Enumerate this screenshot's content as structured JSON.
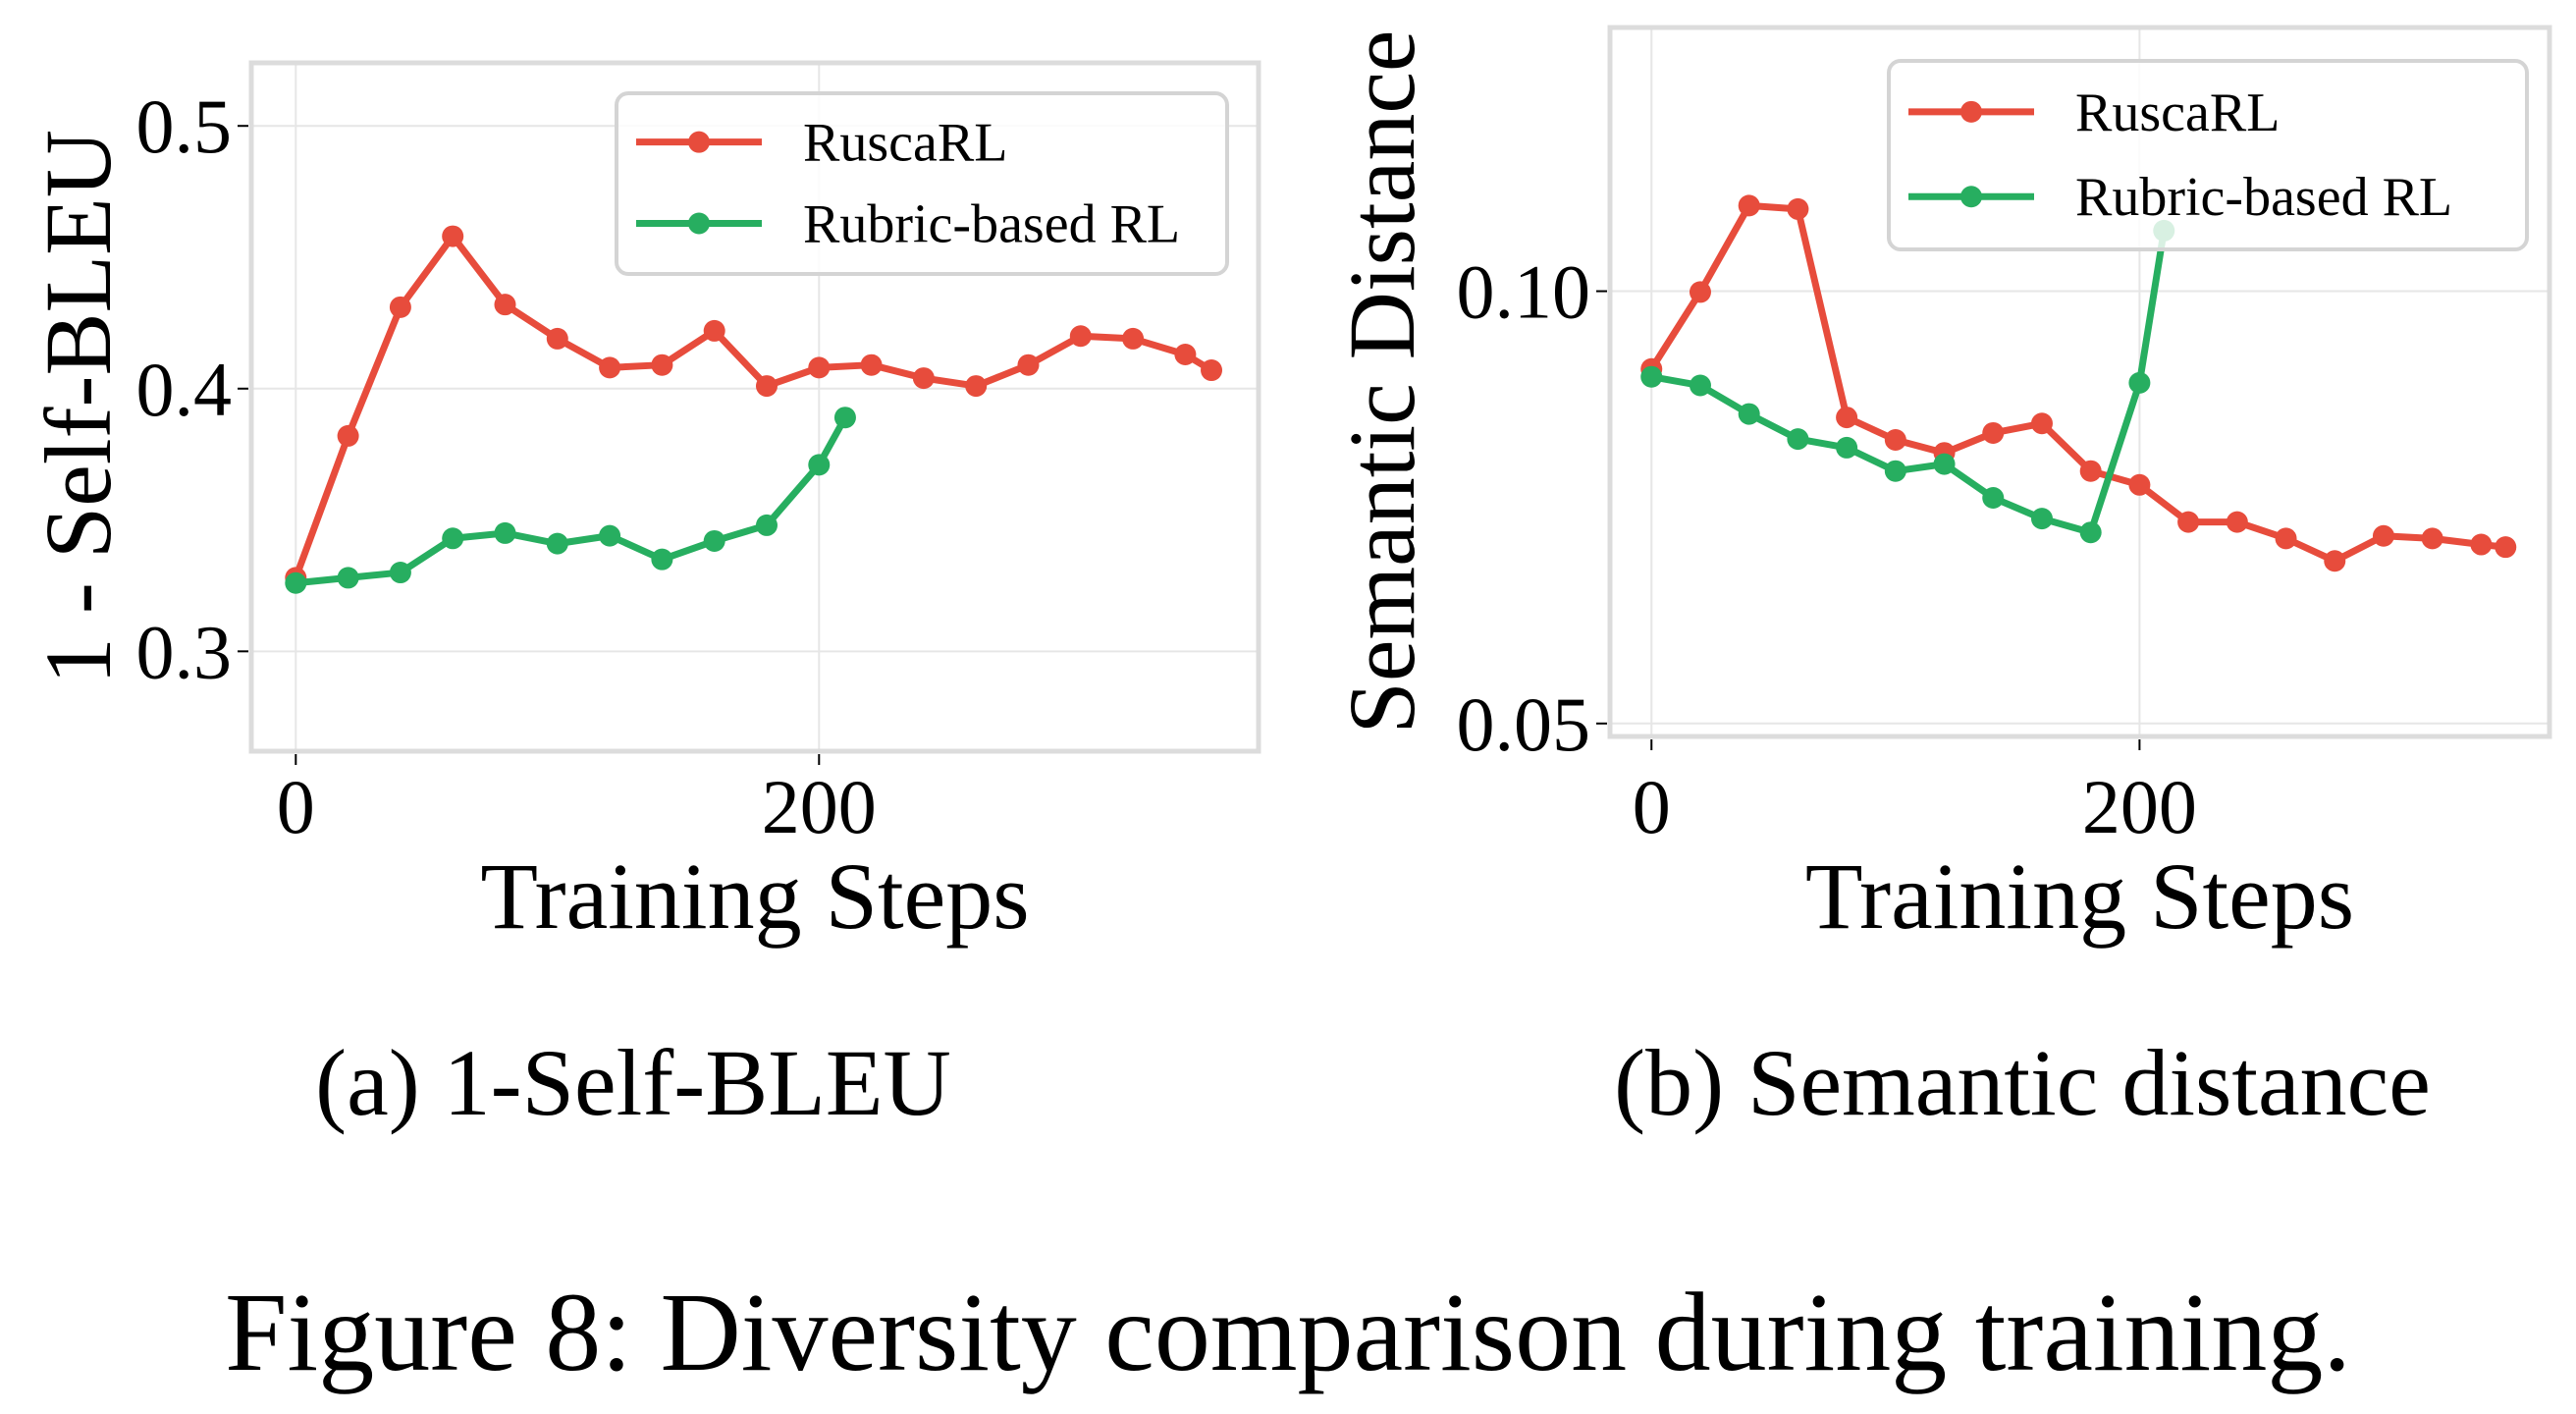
{
  "figure": {
    "caption": "Figure 8: Diversity comparison during training."
  },
  "chart_data": [
    {
      "type": "line",
      "id": "self-bleu",
      "subcaption": "(a) 1-Self-BLEU",
      "title": "",
      "xlabel": "Training Steps",
      "ylabel": "1 - Self-BLEU",
      "xlim": [
        -17,
        368
      ],
      "ylim": [
        0.262,
        0.524
      ],
      "xticks": [
        0,
        200
      ],
      "xtick_labels": [
        "0",
        "200"
      ],
      "yticks": [
        0.3,
        0.4,
        0.5
      ],
      "ytick_labels": [
        "0.3",
        "0.4",
        "0.5"
      ],
      "grid": true,
      "legend": {
        "placement": "top-right",
        "entries": [
          "RuscaRL",
          "Rubric-based RL"
        ]
      },
      "series": [
        {
          "name": "RuscaRL",
          "color": "#e74c3c",
          "x": [
            0,
            20,
            40,
            60,
            80,
            100,
            120,
            140,
            160,
            180,
            200,
            220,
            240,
            260,
            280,
            300,
            320,
            340,
            350
          ],
          "y": [
            0.328,
            0.382,
            0.431,
            0.458,
            0.432,
            0.419,
            0.408,
            0.409,
            0.422,
            0.401,
            0.408,
            0.409,
            0.404,
            0.401,
            0.409,
            0.42,
            0.419,
            0.413,
            0.407
          ]
        },
        {
          "name": "Rubric-based RL",
          "color": "#27ae60",
          "x": [
            0,
            20,
            40,
            60,
            80,
            100,
            120,
            140,
            160,
            180,
            200,
            210
          ],
          "y": [
            0.326,
            0.328,
            0.33,
            0.343,
            0.345,
            0.341,
            0.344,
            0.335,
            0.342,
            0.348,
            0.371,
            0.389
          ]
        }
      ]
    },
    {
      "type": "line",
      "id": "semantic-distance",
      "subcaption": "(b) Semantic distance",
      "title": "",
      "xlabel": "Training Steps",
      "ylabel": "Semantic Distance",
      "xlim": [
        -17,
        368
      ],
      "ylim": [
        0.0485,
        0.1305
      ],
      "xticks": [
        0,
        200
      ],
      "xtick_labels": [
        "0",
        "200"
      ],
      "yticks": [
        0.05,
        0.1
      ],
      "ytick_labels": [
        "0.05",
        "0.10"
      ],
      "grid": true,
      "legend": {
        "placement": "top-right",
        "entries": [
          "RuscaRL",
          "Rubric-based RL"
        ]
      },
      "series": [
        {
          "name": "RuscaRL",
          "color": "#e74c3c",
          "x": [
            0,
            20,
            40,
            60,
            80,
            100,
            120,
            140,
            160,
            180,
            200,
            220,
            240,
            260,
            280,
            300,
            320,
            340,
            350
          ],
          "y": [
            0.091,
            0.0999,
            0.1099,
            0.1095,
            0.0854,
            0.0828,
            0.0813,
            0.0836,
            0.0847,
            0.0792,
            0.0776,
            0.0733,
            0.0733,
            0.0714,
            0.0688,
            0.0717,
            0.0714,
            0.0707,
            0.0704
          ]
        },
        {
          "name": "Rubric-based RL",
          "color": "#27ae60",
          "x": [
            0,
            20,
            40,
            60,
            80,
            100,
            120,
            140,
            160,
            180,
            200,
            210
          ],
          "y": [
            0.0901,
            0.0891,
            0.0858,
            0.0829,
            0.0819,
            0.0792,
            0.08,
            0.0761,
            0.0737,
            0.0721,
            0.0894,
            0.107
          ]
        }
      ]
    }
  ]
}
